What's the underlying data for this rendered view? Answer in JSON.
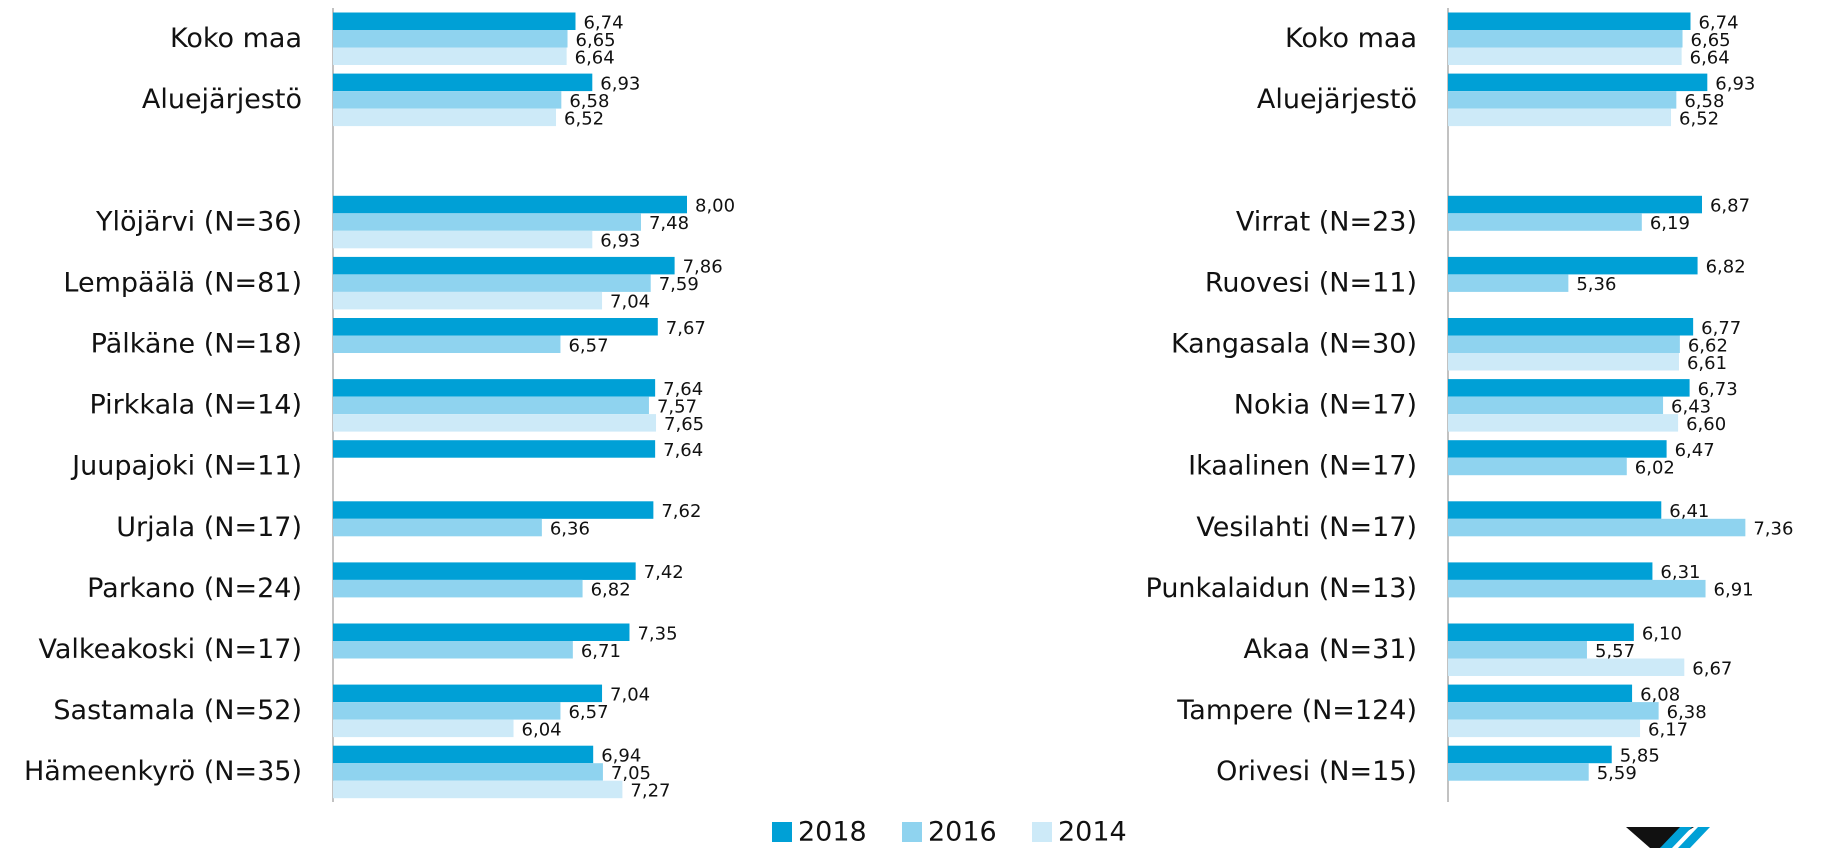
{
  "chart_data": [
    {
      "type": "bar",
      "orientation": "horizontal",
      "categories": [
        "Koko maa",
        "Aluejärjestö",
        null,
        "Ylöjärvi (N=36)",
        "Lempäälä (N=81)",
        "Pälkäne (N=18)",
        "Pirkkala (N=14)",
        "Juupajoki (N=11)",
        "Urjala (N=17)",
        "Parkano (N=24)",
        "Valkeakoski (N=17)",
        "Sastamala (N=52)",
        "Hämeenkyrö (N=35)"
      ],
      "xlim": [
        4,
        10
      ],
      "series": [
        {
          "name": "2018",
          "color": "#00a0d6",
          "values": [
            6.74,
            6.93,
            null,
            8.0,
            7.86,
            7.67,
            7.64,
            7.64,
            7.62,
            7.42,
            7.35,
            7.04,
            6.94
          ],
          "value_labels": [
            "6,74",
            "6,93",
            null,
            "8,00",
            "7,86",
            "7,67",
            "7,64",
            "7,64",
            "7,62",
            "7,42",
            "7,35",
            "7,04",
            "6,94"
          ]
        },
        {
          "name": "2016",
          "color": "#8fd3ef",
          "values": [
            6.65,
            6.58,
            null,
            7.48,
            7.59,
            6.57,
            7.57,
            null,
            6.36,
            6.82,
            6.71,
            6.57,
            7.05
          ],
          "value_labels": [
            "6,65",
            "6,58",
            null,
            "7,48",
            "7,59",
            "6,57",
            "7,57",
            null,
            "6,36",
            "6,82",
            "6,71",
            "6,57",
            "7,05"
          ]
        },
        {
          "name": "2014",
          "color": "#cdeaf8",
          "values": [
            6.64,
            6.52,
            null,
            6.93,
            7.04,
            null,
            7.65,
            null,
            null,
            null,
            null,
            6.04,
            7.27
          ],
          "value_labels": [
            "6,64",
            "6,52",
            null,
            "6,93",
            "7,04",
            null,
            "7,65",
            null,
            null,
            null,
            null,
            "6,04",
            "7,27"
          ]
        }
      ]
    },
    {
      "type": "bar",
      "orientation": "horizontal",
      "categories": [
        "Koko maa",
        "Aluejärjestö",
        null,
        "Virrat (N=23)",
        "Ruovesi (N=11)",
        "Kangasala (N=30)",
        "Nokia (N=17)",
        "Ikaalinen (N=17)",
        "Vesilahti (N=17)",
        "Punkalaidun (N=13)",
        "Akaa (N=31)",
        "Tampere (N=124)",
        "Orivesi (N=15)"
      ],
      "xlim": [
        4,
        10
      ],
      "series": [
        {
          "values": [
            6.74,
            6.93,
            null,
            6.87,
            6.82,
            6.77,
            6.73,
            6.47,
            6.41,
            6.31,
            6.1,
            6.08,
            5.85
          ],
          "value_labels": [
            "6,74",
            "6,93",
            null,
            "6,87",
            "6,82",
            "6,77",
            "6,73",
            "6,47",
            "6,41",
            "6,31",
            "6,10",
            "6,08",
            "5,85"
          ]
        },
        {
          "values": [
            6.65,
            6.58,
            null,
            6.19,
            5.36,
            6.62,
            6.43,
            6.02,
            7.36,
            6.91,
            5.57,
            6.38,
            5.59
          ],
          "value_labels": [
            "6,65",
            "6,58",
            null,
            "6,19",
            "5,36",
            "6,62",
            "6,43",
            "6,02",
            "7,36",
            "6,91",
            "5,57",
            "6,38",
            "5,59"
          ]
        },
        {
          "values": [
            6.64,
            6.52,
            null,
            null,
            null,
            6.61,
            6.6,
            null,
            null,
            null,
            6.67,
            6.17,
            null
          ],
          "value_labels": [
            "6,64",
            "6,52",
            null,
            null,
            null,
            "6,61",
            "6,60",
            null,
            null,
            null,
            "6,67",
            "6,17",
            null
          ]
        }
      ]
    }
  ]
}
